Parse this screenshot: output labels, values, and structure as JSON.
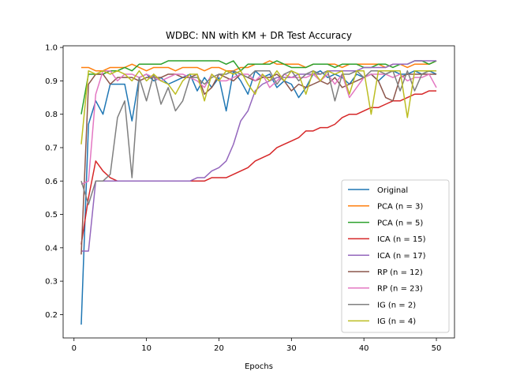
{
  "chart_data": {
    "type": "line",
    "title": "WDBC: NN with KM + DR Test Accuracy",
    "xlabel": "Epochs",
    "ylabel": "",
    "xlim": [
      -1.5,
      52.5
    ],
    "ylim": [
      0.13,
      1.005
    ],
    "xticks": [
      0,
      10,
      20,
      30,
      40,
      50
    ],
    "yticks": [
      0.2,
      0.3,
      0.4,
      0.5,
      0.6,
      0.7,
      0.8,
      0.9,
      1.0
    ],
    "ytick_labels": [
      "0.2",
      "0.3",
      "0.4",
      "0.5",
      "0.6",
      "0.7",
      "0.8",
      "0.9",
      "1.0"
    ],
    "grid": false,
    "legend_position": "lower right",
    "x": [
      1,
      2,
      3,
      4,
      5,
      6,
      7,
      8,
      9,
      10,
      11,
      12,
      13,
      14,
      15,
      16,
      17,
      18,
      19,
      20,
      21,
      22,
      23,
      24,
      25,
      26,
      27,
      28,
      29,
      30,
      31,
      32,
      33,
      34,
      35,
      36,
      37,
      38,
      39,
      40,
      41,
      42,
      43,
      44,
      45,
      46,
      47,
      48,
      49,
      50
    ],
    "series": [
      {
        "name": "Original",
        "color": "#1f77b4",
        "values": [
          0.17,
          0.77,
          0.84,
          0.8,
          0.89,
          0.89,
          0.89,
          0.78,
          0.91,
          0.92,
          0.9,
          0.91,
          0.89,
          0.9,
          0.91,
          0.92,
          0.87,
          0.91,
          0.88,
          0.91,
          0.81,
          0.93,
          0.9,
          0.86,
          0.93,
          0.91,
          0.92,
          0.88,
          0.9,
          0.89,
          0.85,
          0.88,
          0.92,
          0.93,
          0.91,
          0.92,
          0.91,
          0.89,
          0.92,
          0.91,
          0.92,
          0.9,
          0.92,
          0.93,
          0.92,
          0.92,
          0.93,
          0.92,
          0.93,
          0.92
        ]
      },
      {
        "name": "PCA (n = 3)",
        "color": "#ff7f0e",
        "values": [
          0.94,
          0.94,
          0.93,
          0.93,
          0.94,
          0.94,
          0.94,
          0.95,
          0.94,
          0.93,
          0.94,
          0.94,
          0.94,
          0.93,
          0.94,
          0.94,
          0.94,
          0.93,
          0.94,
          0.94,
          0.93,
          0.93,
          0.94,
          0.94,
          0.95,
          0.95,
          0.96,
          0.95,
          0.95,
          0.95,
          0.95,
          0.94,
          0.95,
          0.95,
          0.95,
          0.95,
          0.94,
          0.95,
          0.95,
          0.95,
          0.95,
          0.95,
          0.94,
          0.95,
          0.95,
          0.94,
          0.95,
          0.95,
          0.95,
          0.96
        ]
      },
      {
        "name": "PCA (n = 5)",
        "color": "#2ca02c",
        "values": [
          0.8,
          0.92,
          0.92,
          0.92,
          0.93,
          0.93,
          0.94,
          0.93,
          0.95,
          0.95,
          0.95,
          0.95,
          0.96,
          0.96,
          0.96,
          0.96,
          0.96,
          0.96,
          0.96,
          0.96,
          0.95,
          0.96,
          0.93,
          0.95,
          0.95,
          0.95,
          0.95,
          0.96,
          0.95,
          0.94,
          0.94,
          0.94,
          0.95,
          0.95,
          0.95,
          0.94,
          0.95,
          0.95,
          0.95,
          0.94,
          0.94,
          0.95,
          0.95,
          0.94,
          0.95,
          0.95,
          0.96,
          0.96,
          0.95,
          0.96
        ]
      },
      {
        "name": "ICA (n = 15)",
        "color": "#d62728",
        "values": [
          0.41,
          0.55,
          0.66,
          0.63,
          0.61,
          0.6,
          0.6,
          0.6,
          0.6,
          0.6,
          0.6,
          0.6,
          0.6,
          0.6,
          0.6,
          0.6,
          0.6,
          0.6,
          0.61,
          0.61,
          0.61,
          0.62,
          0.63,
          0.64,
          0.66,
          0.67,
          0.68,
          0.7,
          0.71,
          0.72,
          0.73,
          0.75,
          0.75,
          0.76,
          0.76,
          0.77,
          0.79,
          0.8,
          0.8,
          0.81,
          0.82,
          0.82,
          0.83,
          0.84,
          0.84,
          0.85,
          0.86,
          0.86,
          0.87,
          0.87
        ]
      },
      {
        "name": "ICA (n = 17)",
        "color": "#9467bd",
        "values": [
          0.39,
          0.39,
          0.6,
          0.6,
          0.6,
          0.6,
          0.6,
          0.6,
          0.6,
          0.6,
          0.6,
          0.6,
          0.6,
          0.6,
          0.6,
          0.6,
          0.61,
          0.61,
          0.63,
          0.64,
          0.66,
          0.71,
          0.78,
          0.81,
          0.87,
          0.89,
          0.9,
          0.91,
          0.91,
          0.91,
          0.92,
          0.92,
          0.92,
          0.92,
          0.93,
          0.93,
          0.93,
          0.93,
          0.93,
          0.94,
          0.94,
          0.94,
          0.94,
          0.95,
          0.95,
          0.95,
          0.96,
          0.96,
          0.96,
          0.96
        ]
      },
      {
        "name": "RP (n = 12)",
        "color": "#8c564b",
        "values": [
          0.38,
          0.89,
          0.92,
          0.92,
          0.89,
          0.91,
          0.91,
          0.91,
          0.9,
          0.91,
          0.91,
          0.91,
          0.92,
          0.92,
          0.91,
          0.91,
          0.92,
          0.86,
          0.88,
          0.92,
          0.91,
          0.9,
          0.92,
          0.91,
          0.9,
          0.91,
          0.91,
          0.92,
          0.9,
          0.87,
          0.89,
          0.88,
          0.89,
          0.9,
          0.89,
          0.91,
          0.88,
          0.89,
          0.9,
          0.91,
          0.92,
          0.9,
          0.85,
          0.84,
          0.91,
          0.92,
          0.92,
          0.92,
          0.92,
          0.92
        ]
      },
      {
        "name": "RP (n = 23)",
        "color": "#e377c2",
        "values": [
          0.59,
          0.6,
          0.86,
          0.93,
          0.93,
          0.9,
          0.92,
          0.92,
          0.91,
          0.92,
          0.91,
          0.9,
          0.91,
          0.92,
          0.92,
          0.91,
          0.9,
          0.88,
          0.92,
          0.9,
          0.9,
          0.91,
          0.92,
          0.92,
          0.9,
          0.92,
          0.88,
          0.9,
          0.92,
          0.91,
          0.91,
          0.91,
          0.92,
          0.9,
          0.92,
          0.89,
          0.92,
          0.85,
          0.88,
          0.91,
          0.92,
          0.92,
          0.92,
          0.91,
          0.92,
          0.9,
          0.91,
          0.91,
          0.92,
          0.88
        ]
      },
      {
        "name": "IG (n = 2)",
        "color": "#7f7f7f",
        "values": [
          0.6,
          0.53,
          0.6,
          0.6,
          0.62,
          0.79,
          0.84,
          0.61,
          0.91,
          0.84,
          0.92,
          0.83,
          0.88,
          0.81,
          0.84,
          0.91,
          0.91,
          0.89,
          0.91,
          0.92,
          0.92,
          0.93,
          0.92,
          0.91,
          0.93,
          0.93,
          0.93,
          0.89,
          0.92,
          0.93,
          0.9,
          0.92,
          0.93,
          0.92,
          0.93,
          0.84,
          0.92,
          0.92,
          0.93,
          0.91,
          0.93,
          0.93,
          0.92,
          0.93,
          0.87,
          0.93,
          0.87,
          0.92,
          0.93,
          0.93
        ]
      },
      {
        "name": "IG (n = 4)",
        "color": "#bcbd22",
        "values": [
          0.71,
          0.93,
          0.92,
          0.93,
          0.92,
          0.93,
          0.92,
          0.9,
          0.93,
          0.9,
          0.92,
          0.9,
          0.89,
          0.86,
          0.9,
          0.92,
          0.92,
          0.84,
          0.92,
          0.9,
          0.93,
          0.92,
          0.93,
          0.89,
          0.86,
          0.92,
          0.9,
          0.93,
          0.9,
          0.93,
          0.92,
          0.86,
          0.93,
          0.9,
          0.93,
          0.92,
          0.93,
          0.86,
          0.93,
          0.93,
          0.8,
          0.93,
          0.93,
          0.93,
          0.93,
          0.79,
          0.93,
          0.93,
          0.93,
          0.93
        ]
      }
    ]
  }
}
